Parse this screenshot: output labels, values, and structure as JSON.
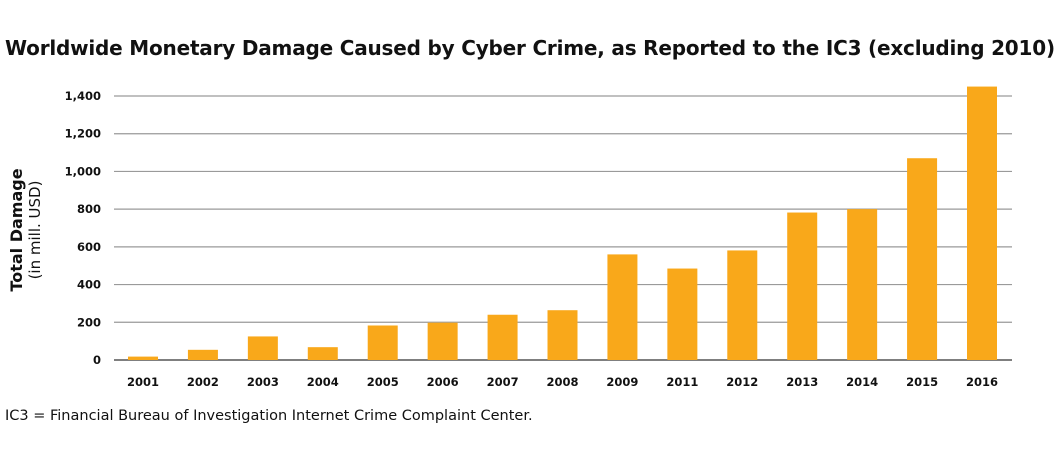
{
  "chart_data": {
    "type": "bar",
    "title": "Worldwide Monetary Damage Caused by Cyber Crime, as Reported to the IC3 (excluding 2010)",
    "ylabel": "Total Damage",
    "ylabel_sub": "(in mill. USD)",
    "xlabel": "",
    "categories": [
      "2001",
      "2002",
      "2003",
      "2004",
      "2005",
      "2006",
      "2007",
      "2008",
      "2009",
      "2011",
      "2012",
      "2013",
      "2014",
      "2015",
      "2016"
    ],
    "values": [
      18,
      54,
      125,
      68,
      183,
      198,
      240,
      264,
      560,
      485,
      581,
      782,
      800,
      1070,
      1450
    ],
    "ylim": [
      0,
      1400
    ],
    "yticks": [
      0,
      200,
      400,
      600,
      800,
      1000,
      1200,
      1400
    ],
    "ytick_labels": [
      "0",
      "200",
      "400",
      "600",
      "800",
      "1,000",
      "1,200",
      "1,400"
    ],
    "grid": true,
    "bar_color": "#F9A81A",
    "grid_color": "#9a9a9a"
  },
  "footnote": "IC3 = Financial Bureau of Investigation Internet Crime Complaint Center."
}
